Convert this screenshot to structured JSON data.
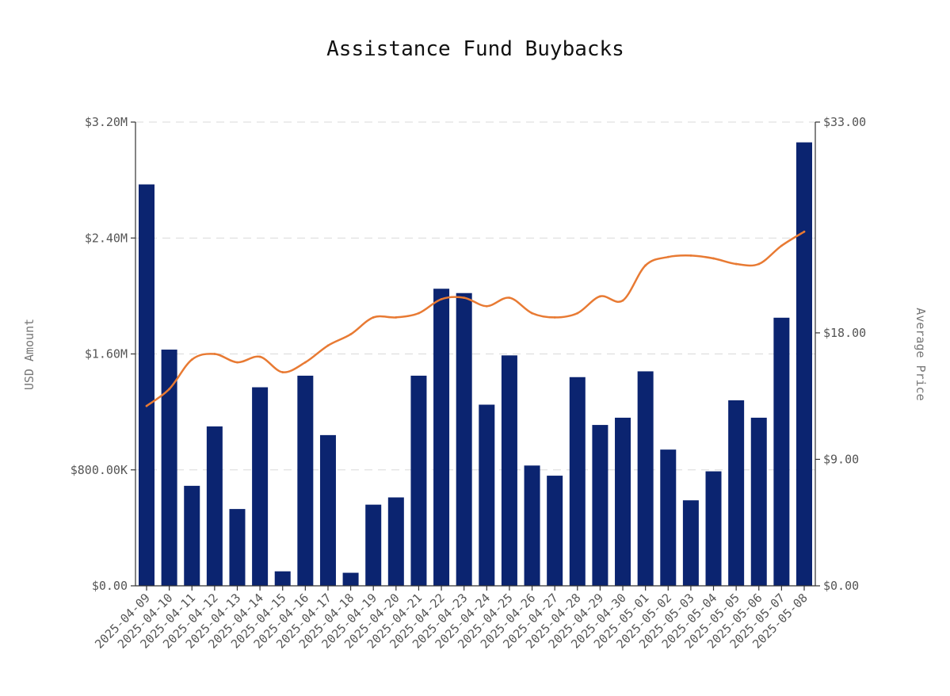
{
  "chart_data": {
    "type": "bar",
    "title": "Assistance Fund Buybacks",
    "ylabel": "USD Amount",
    "y2label": "Average Price",
    "ylim": [
      0,
      3200000
    ],
    "y2lim": [
      0,
      33
    ],
    "grid": true,
    "y_ticks": [
      {
        "value": 0,
        "label": "$0.00"
      },
      {
        "value": 800000,
        "label": "$800.00K"
      },
      {
        "value": 1600000,
        "label": "$1.60M"
      },
      {
        "value": 2400000,
        "label": "$2.40M"
      },
      {
        "value": 3200000,
        "label": "$3.20M"
      }
    ],
    "y2_ticks": [
      {
        "value": 0,
        "label": "$0.00"
      },
      {
        "value": 9,
        "label": "$9.00"
      },
      {
        "value": 18,
        "label": "$18.00"
      },
      {
        "value": 33,
        "label": "$33.00"
      }
    ],
    "categories": [
      "2025-04-09",
      "2025-04-10",
      "2025-04-11",
      "2025-04-12",
      "2025-04-13",
      "2025-04-14",
      "2025-04-15",
      "2025-04-16",
      "2025-04-17",
      "2025-04-18",
      "2025-04-19",
      "2025-04-20",
      "2025-04-21",
      "2025-04-22",
      "2025-04-23",
      "2025-04-24",
      "2025-04-25",
      "2025-04-26",
      "2025-04-27",
      "2025-04-28",
      "2025-04-29",
      "2025-04-30",
      "2025-05-01",
      "2025-05-02",
      "2025-05-03",
      "2025-05-04",
      "2025-05-05",
      "2025-05-06",
      "2025-05-07",
      "2025-05-08"
    ],
    "series": [
      {
        "type": "bar",
        "axis": "left",
        "color": "#0b2470",
        "values": [
          2770000,
          1630000,
          690000,
          1100000,
          530000,
          1370000,
          100000,
          1450000,
          1040000,
          90000,
          560000,
          610000,
          1450000,
          2050000,
          2020000,
          1250000,
          1590000,
          830000,
          760000,
          1440000,
          1110000,
          1160000,
          1480000,
          940000,
          590000,
          790000,
          1280000,
          1160000,
          1850000,
          3060000
        ]
      },
      {
        "type": "line",
        "axis": "right",
        "color": "#e87a33",
        "values": [
          12.8,
          14,
          16.1,
          16.5,
          15.9,
          16.3,
          15.2,
          15.9,
          17.1,
          17.9,
          19.1,
          19.1,
          19.4,
          20.4,
          20.5,
          19.9,
          20.5,
          19.4,
          19.1,
          19.4,
          20.6,
          20.3,
          22.8,
          23.4,
          23.5,
          23.3,
          22.9,
          22.9,
          24.2,
          25.2
        ]
      }
    ]
  }
}
